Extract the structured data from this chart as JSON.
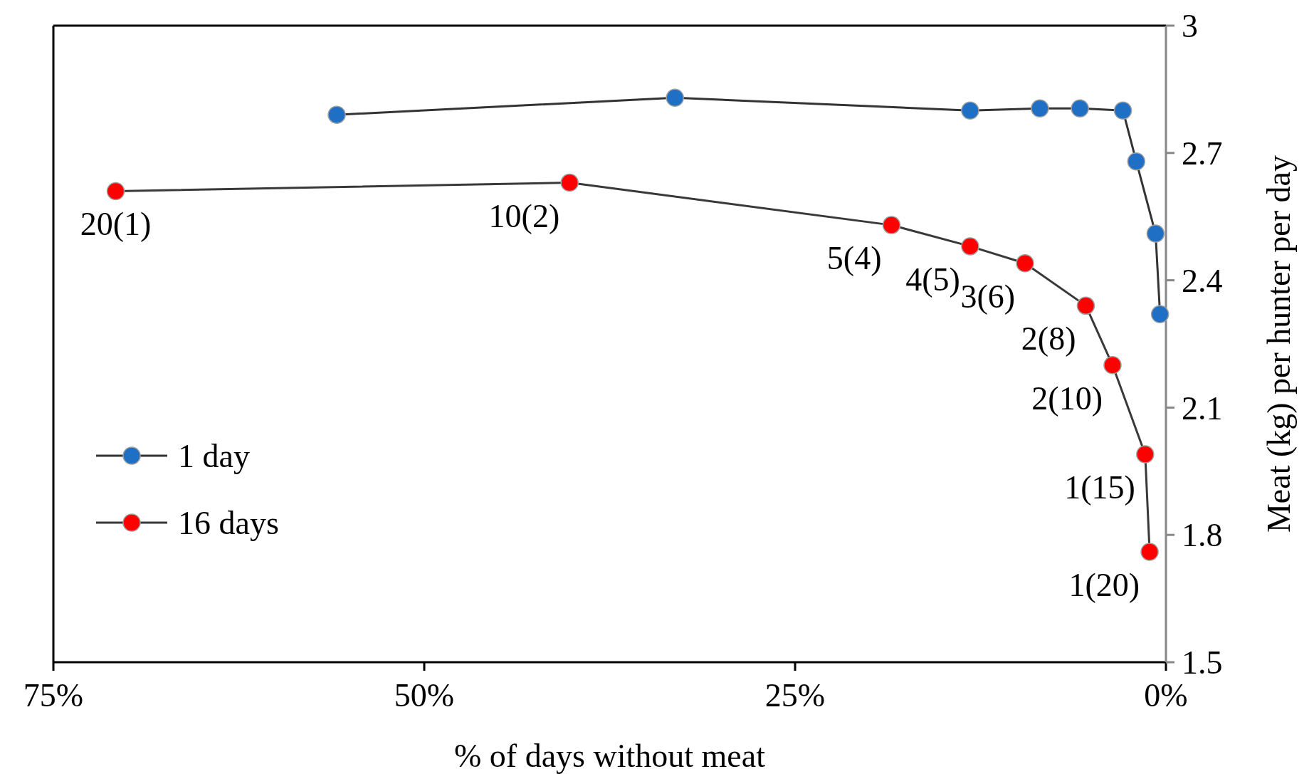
{
  "chart_data": {
    "type": "line",
    "xlabel": "% of days without meat",
    "ylabel": "Meat (kg) per hunter per day",
    "xlim": [
      75,
      0
    ],
    "xticks": [
      {
        "value": 75,
        "label": "75%"
      },
      {
        "value": 50,
        "label": "50%"
      },
      {
        "value": 25,
        "label": "25%"
      },
      {
        "value": 0,
        "label": "0%"
      }
    ],
    "ylim": [
      1.5,
      3
    ],
    "yticks": [
      1.5,
      1.8,
      2.1,
      2.4,
      2.7,
      3
    ],
    "series": [
      {
        "name": "1 day",
        "color": "#1f6fc5",
        "x": [
          55.9,
          33.1,
          13.2,
          8.5,
          5.8,
          2.9,
          2.0,
          0.7,
          0.4
        ],
        "values": [
          2.79,
          2.83,
          2.8,
          2.805,
          2.805,
          2.8,
          2.68,
          2.51,
          2.32
        ]
      },
      {
        "name": "16 days",
        "color": "#ff0000",
        "x": [
          70.8,
          40.2,
          18.5,
          13.2,
          9.5,
          5.4,
          3.6,
          1.4,
          1.1
        ],
        "values": [
          2.61,
          2.63,
          2.53,
          2.48,
          2.44,
          2.34,
          2.2,
          1.99,
          1.76
        ]
      }
    ],
    "annotations": [
      {
        "text": "20(1)",
        "x": 70.8,
        "y": 2.61
      },
      {
        "text": "10(2)",
        "x": 40.2,
        "y": 2.63
      },
      {
        "text": "5(4)",
        "x": 18.5,
        "y": 2.53
      },
      {
        "text": "4(5)",
        "x": 13.2,
        "y": 2.48
      },
      {
        "text": "3(6)",
        "x": 9.5,
        "y": 2.44
      },
      {
        "text": "2(8)",
        "x": 5.4,
        "y": 2.34
      },
      {
        "text": "2(10)",
        "x": 3.6,
        "y": 2.2
      },
      {
        "text": "1(15)",
        "x": 1.4,
        "y": 1.99
      },
      {
        "text": "1(20)",
        "x": 1.1,
        "y": 1.76
      }
    ],
    "marker": "circle",
    "legend": "bottom left",
    "grid": false
  }
}
